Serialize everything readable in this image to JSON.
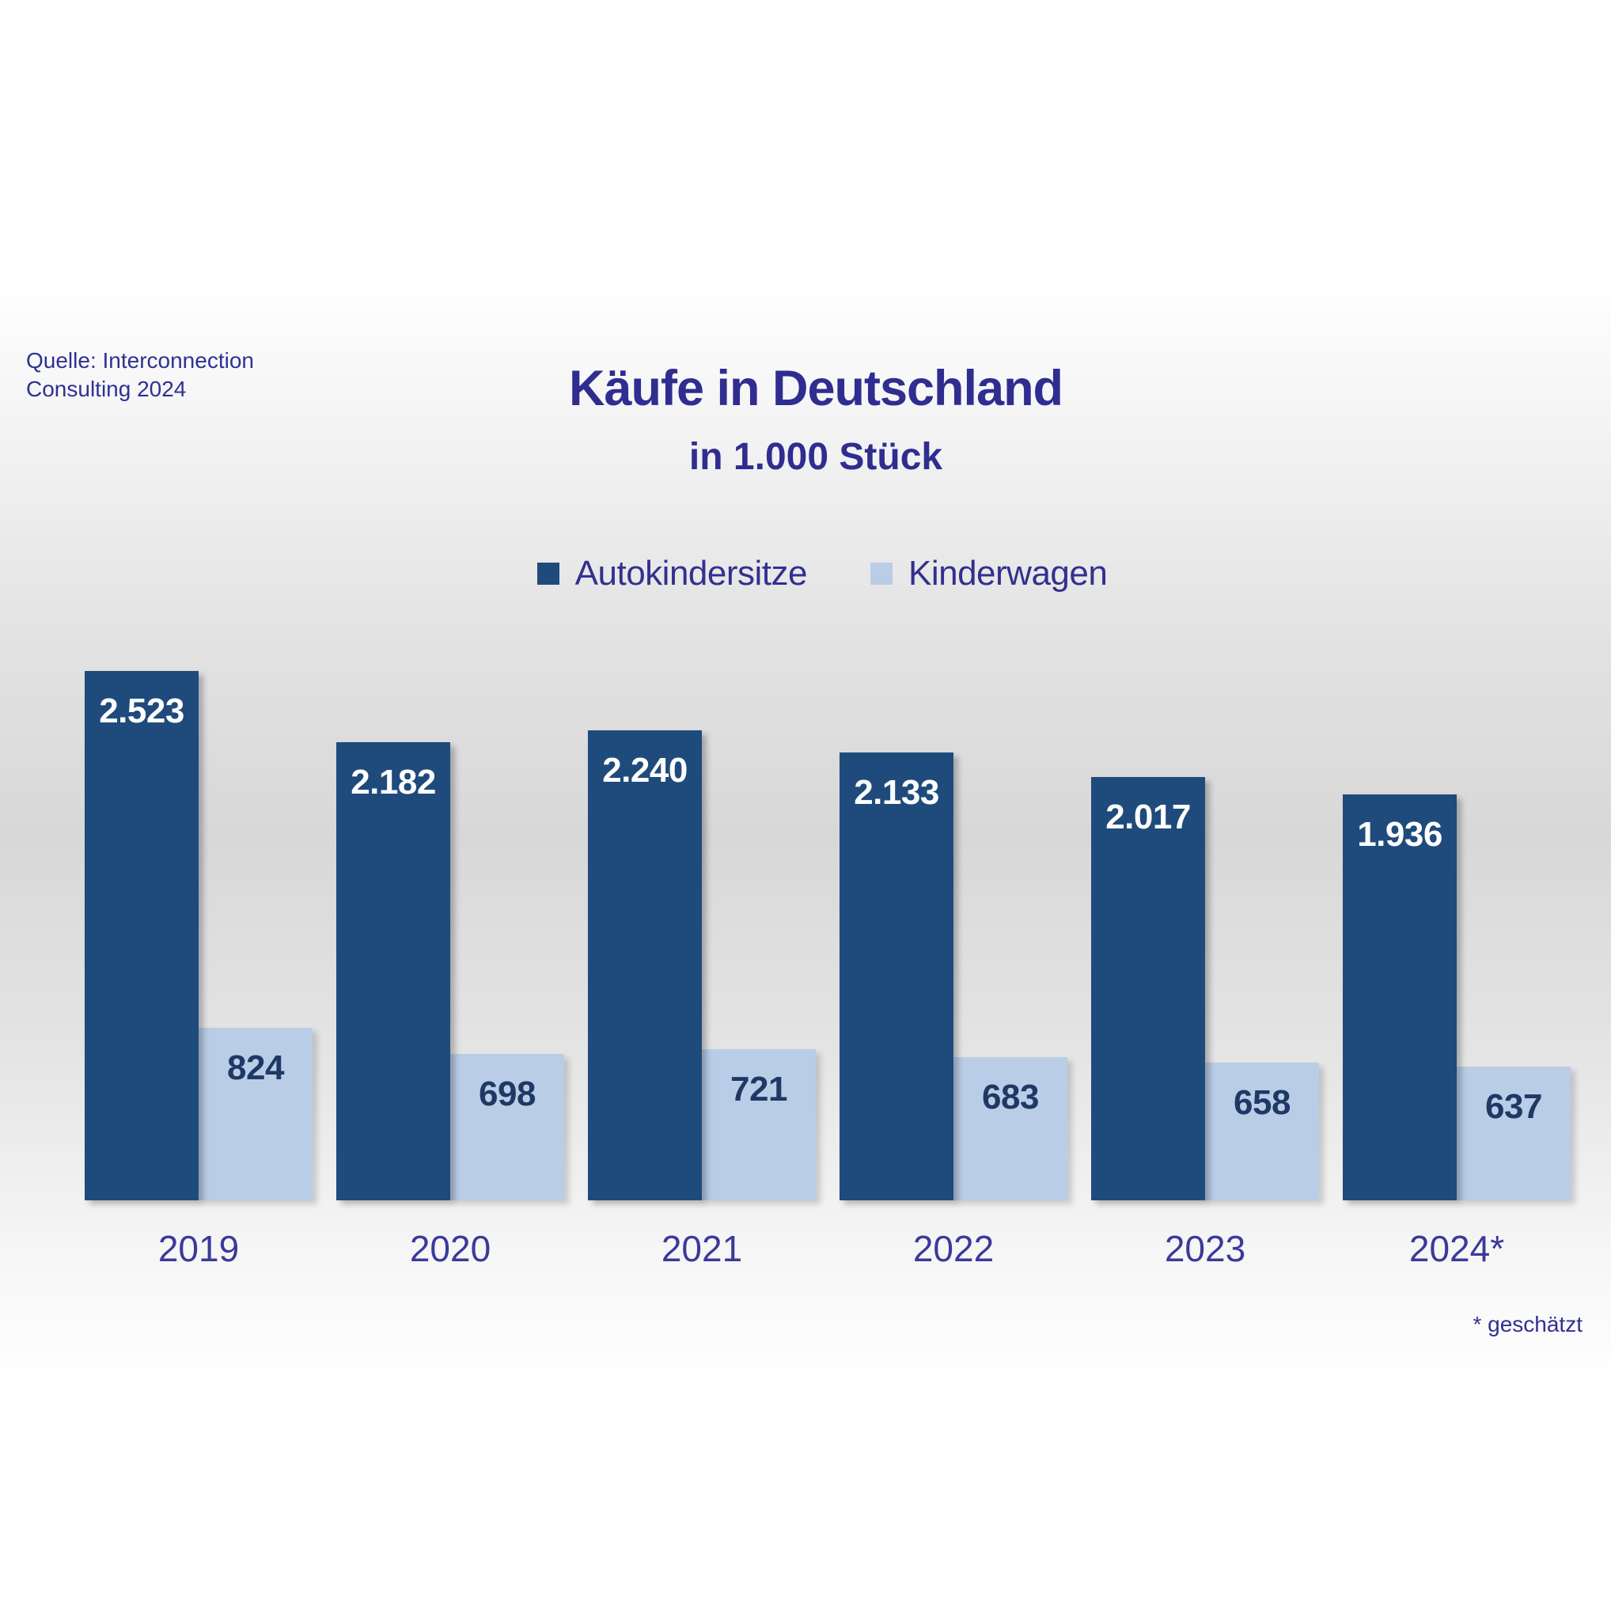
{
  "source": {
    "text": "Quelle: Interconnection\nConsulting 2024"
  },
  "footnote": {
    "text": "* geschätzt"
  },
  "chart_data": {
    "type": "bar",
    "title": "Käufe in Deutschland",
    "subtitle": "in 1.000 Stück",
    "categories": [
      "2019",
      "2020",
      "2021",
      "2022",
      "2023",
      "2024*"
    ],
    "series": [
      {
        "name": "Autokindersitze",
        "color": "#1f4b7c",
        "values": [
          2523,
          2182,
          2240,
          2133,
          2017,
          1936
        ],
        "labels": [
          "2.523",
          "2.182",
          "2.240",
          "2.133",
          "2.017",
          "1.936"
        ]
      },
      {
        "name": "Kinderwagen",
        "color": "#bacde7",
        "values": [
          824,
          698,
          721,
          683,
          658,
          637
        ],
        "labels": [
          "824",
          "698",
          "721",
          "683",
          "658",
          "637"
        ]
      }
    ],
    "ylim": [
      0,
      2523
    ],
    "grid": false,
    "legend_position": "top-center",
    "value_label_colors": {
      "Autokindersitze": "#ffffff",
      "Kinderwagen": "#1f3864"
    },
    "text_colors": {
      "title": "#2f2d90",
      "axis": "#3b3a9a",
      "source": "#2e3192",
      "footnote": "#33308f"
    }
  }
}
